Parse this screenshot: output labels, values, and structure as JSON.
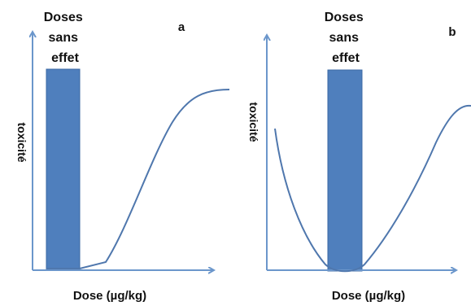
{
  "band_labels": {
    "a": [
      "Doses",
      "sans",
      "effet"
    ],
    "b": [
      "Doses",
      "sans",
      "effet"
    ]
  },
  "panel_letters": {
    "a": "a",
    "b": "b"
  },
  "y_axis_label": "toxicité",
  "x_axis_label": "Dose (µg/kg)",
  "colors": {
    "axis": "#6b96cb",
    "band_fill": "#4f7fbd",
    "band_stroke": "#3b6aa4",
    "curve": "#4f77ad",
    "text": "#111111"
  }
}
